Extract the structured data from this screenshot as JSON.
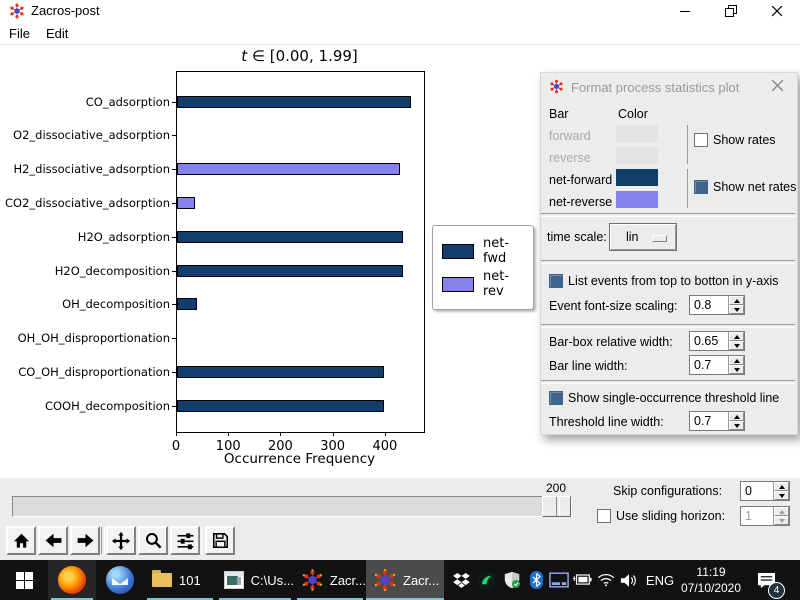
{
  "window": {
    "title": "Zacros-post",
    "menu": [
      {
        "label": "File"
      },
      {
        "label": "Edit"
      }
    ]
  },
  "chart_data": {
    "type": "bar",
    "orientation": "horizontal",
    "title": "t ∈ [0.00, 1.99]",
    "title_var": "t",
    "title_rest": " ∈ [0.00, 1.99]",
    "xlabel": "Occurrence Frequency",
    "xlim": [
      0,
      473
    ],
    "xticks": [
      0,
      100,
      200,
      300,
      400
    ],
    "grid": false,
    "legend_position": "right of axes",
    "series": [
      {
        "name": "net-fwd",
        "color": "#123e6d"
      },
      {
        "name": "net-rev",
        "color": "#8482ec"
      }
    ],
    "points": [
      {
        "label": "CO_adsorption",
        "value": 448,
        "series": "net-fwd"
      },
      {
        "label": "O2_dissociative_adsorption",
        "value": 0,
        "series": "net-fwd"
      },
      {
        "label": "H2_dissociative_adsorption",
        "value": 427,
        "series": "net-rev"
      },
      {
        "label": "CO2_dissociative_adsorption",
        "value": 35,
        "series": "net-rev"
      },
      {
        "label": "H2O_adsorption",
        "value": 433,
        "series": "net-fwd"
      },
      {
        "label": "H2O_decomposition",
        "value": 433,
        "series": "net-fwd"
      },
      {
        "label": "OH_decomposition",
        "value": 38,
        "series": "net-fwd"
      },
      {
        "label": "OH_OH_disproportionation",
        "value": 0,
        "series": "net-fwd"
      },
      {
        "label": "CO_OH_disproportionation",
        "value": 397,
        "series": "net-fwd"
      },
      {
        "label": "COOH_decomposition",
        "value": 397,
        "series": "net-fwd"
      }
    ]
  },
  "dialog": {
    "title": "Format process statistics plot",
    "col_bar": "Bar",
    "col_color": "Color",
    "rows": [
      {
        "label": "forward",
        "color": "#e3e3e3",
        "enabled": false
      },
      {
        "label": "reverse",
        "color": "#e3e3e3",
        "enabled": false
      },
      {
        "label": "net-forward",
        "color": "#123e6d",
        "enabled": true
      },
      {
        "label": "net-reverse",
        "color": "#8482ec",
        "enabled": true
      }
    ],
    "show_rates": {
      "label": "Show rates",
      "checked": false
    },
    "show_net_rates": {
      "label": "Show net rates",
      "checked": true
    },
    "time_scale": {
      "label": "time scale:",
      "value": "lin"
    },
    "list_events": {
      "label": "List events from top to botton in y-axis",
      "checked": true
    },
    "event_font_scaling": {
      "label": "Event font-size scaling:",
      "value": "0.8"
    },
    "barbox_width": {
      "label": "Bar-box relative width:",
      "value": "0.65"
    },
    "bar_line_width": {
      "label": "Bar line width:",
      "value": "0.7"
    },
    "threshold": {
      "label": "Show single-occurrence threshold line",
      "checked": true
    },
    "threshold_width": {
      "label": "Threshold line width:",
      "value": "0.7"
    }
  },
  "bottom": {
    "slider_value": "200",
    "skip": {
      "label": "Skip configurations:",
      "value": "0"
    },
    "horizon": {
      "label": "Use sliding horizon:",
      "value": "1",
      "checked": false
    }
  },
  "taskbar": {
    "items": [
      {
        "label": "101"
      },
      {
        "label": "C:\\Us..."
      },
      {
        "label": "Zacr..."
      },
      {
        "label": "Zacr..."
      }
    ],
    "lang": "ENG",
    "time": "11:19",
    "date": "07/10/2020",
    "badge": "4"
  },
  "colors": {
    "net_fwd": "#123e6d",
    "net_rev": "#8482ec",
    "disabled_swatch": "#e3e3e3",
    "taskbar_underline": "#7fc4cf",
    "check_fill": "#40648a"
  }
}
